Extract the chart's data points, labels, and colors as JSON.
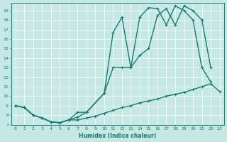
{
  "xlabel": "Humidex (Indice chaleur)",
  "bg_color": "#c5e8e5",
  "line_color": "#1a7a6e",
  "grid_color": "#ffffff",
  "xlim": [
    -0.5,
    23.5
  ],
  "ylim": [
    7,
    19.8
  ],
  "yticks": [
    7,
    8,
    9,
    10,
    11,
    12,
    13,
    14,
    15,
    16,
    17,
    18,
    19
  ],
  "xticks": [
    0,
    1,
    2,
    3,
    4,
    5,
    6,
    7,
    8,
    9,
    10,
    11,
    12,
    13,
    14,
    15,
    16,
    17,
    18,
    19,
    20,
    21,
    22,
    23
  ],
  "line1_x": [
    0,
    1,
    2,
    3,
    4,
    5,
    6,
    7,
    8,
    9,
    10,
    11,
    12,
    13,
    14,
    15,
    16,
    17,
    18,
    19,
    20,
    21,
    22,
    23
  ],
  "line1_y": [
    9.0,
    8.8,
    8.0,
    7.7,
    7.3,
    7.2,
    7.5,
    7.5,
    7.7,
    7.9,
    8.2,
    8.5,
    8.8,
    9.0,
    9.3,
    9.5,
    9.7,
    10.0,
    10.2,
    10.4,
    10.7,
    11.0,
    11.3,
    10.5
  ],
  "line2_x": [
    0,
    1,
    2,
    3,
    4,
    5,
    6,
    7,
    8,
    10,
    11,
    12,
    13,
    14,
    15,
    16,
    17,
    18,
    19,
    20,
    21,
    22
  ],
  "line2_y": [
    9.0,
    8.8,
    8.0,
    7.7,
    7.3,
    7.2,
    7.5,
    7.8,
    8.3,
    10.3,
    13.0,
    13.0,
    13.0,
    14.3,
    15.0,
    18.5,
    19.2,
    17.5,
    19.5,
    19.0,
    18.0,
    13.0
  ],
  "line3_x": [
    0,
    1,
    2,
    3,
    4,
    5,
    6,
    7,
    8,
    10,
    11,
    12,
    13,
    14,
    15,
    16,
    17,
    18,
    19,
    20,
    21,
    22
  ],
  "line3_y": [
    9.0,
    8.8,
    8.0,
    7.7,
    7.3,
    7.2,
    7.5,
    8.3,
    8.3,
    10.3,
    16.7,
    18.3,
    13.0,
    18.3,
    19.3,
    19.2,
    17.5,
    19.5,
    19.0,
    18.0,
    13.0,
    11.5
  ]
}
